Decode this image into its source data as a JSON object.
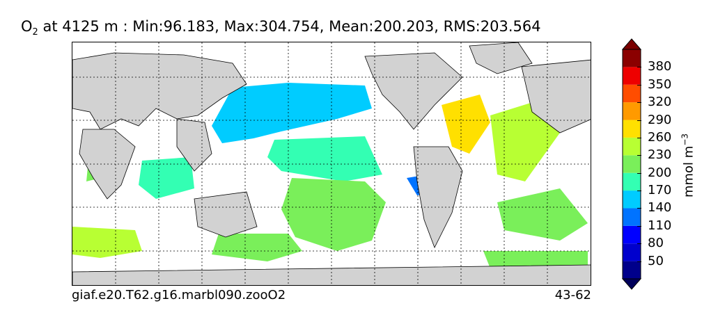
{
  "title": {
    "species": "O",
    "subscript": "2",
    "depth": "at 4125 m",
    "stats": ": Min:96.183, Max:304.754, Mean:200.203, RMS:203.564"
  },
  "footer": {
    "case": "giaf.e20.T62.g16.marbl090.zooO2",
    "years": "43-62"
  },
  "colorbar": {
    "unit": "mmol m",
    "unit_exponent": "−3",
    "ticks": [
      "50",
      "80",
      "110",
      "140",
      "170",
      "200",
      "230",
      "260",
      "290",
      "320",
      "350",
      "380"
    ],
    "colors": [
      "#00008b",
      "#0000cd",
      "#0000ff",
      "#0073ff",
      "#00ccff",
      "#33ffb3",
      "#7aef5a",
      "#b8ff33",
      "#ffe000",
      "#ff9a00",
      "#ff4d00",
      "#ee0000",
      "#8b0000"
    ],
    "under_color": "#00005a",
    "over_color": "#7a0000"
  },
  "map": {
    "land_color": "#d2d2d2",
    "grid_color": "#000000"
  }
}
